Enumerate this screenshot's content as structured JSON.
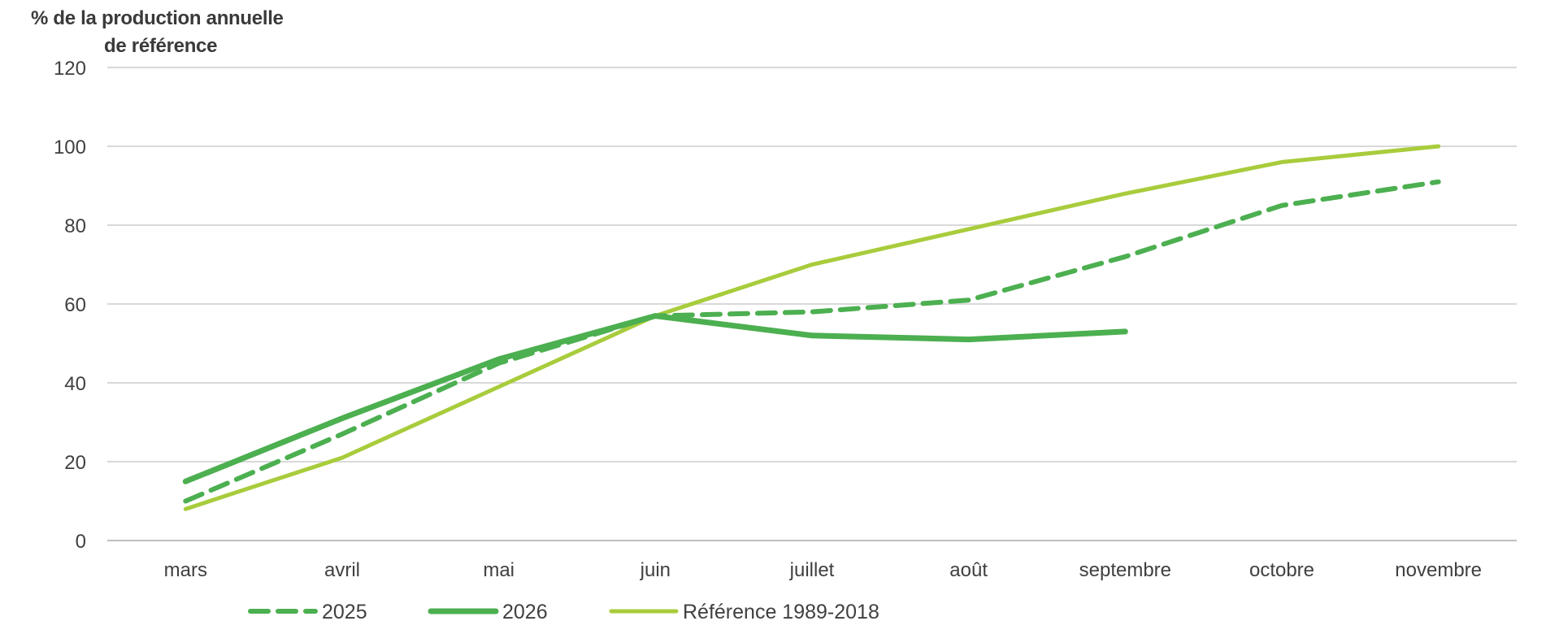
{
  "chart_data": {
    "type": "line",
    "ylabel_line1": "% de  la production  annuelle",
    "ylabel_line2": "de référence",
    "categories": [
      "mars",
      "avril",
      "mai",
      "juin",
      "juillet",
      "août",
      "septembre",
      "octobre",
      "novembre"
    ],
    "ylim": [
      0,
      120
    ],
    "yticks": [
      0,
      20,
      40,
      60,
      80,
      100,
      120
    ],
    "grid": true,
    "legend_position": "bottom",
    "series": [
      {
        "name": "2025",
        "style": "dashed",
        "color": "#4caf50",
        "values": [
          10,
          27,
          45,
          57,
          58,
          61,
          72,
          85,
          91
        ]
      },
      {
        "name": "2026",
        "style": "solid-thick",
        "color": "#4caf50",
        "values": [
          15,
          31,
          46,
          57,
          52,
          51,
          53,
          null,
          null
        ]
      },
      {
        "name": "Référence 1989-2018",
        "style": "solid",
        "color": "#a8cc3c",
        "values": [
          8,
          21,
          39,
          57,
          70,
          79,
          88,
          96,
          100
        ]
      }
    ]
  }
}
